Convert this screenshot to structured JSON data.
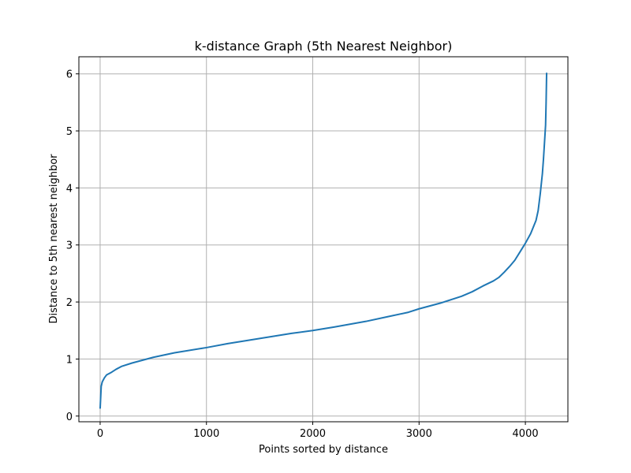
{
  "chart_data": {
    "type": "line",
    "title": "k-distance Graph (5th Nearest Neighbor)",
    "xlabel": "Points sorted by distance",
    "ylabel": "Distance to 5th nearest neighbor",
    "xlim": [
      -200,
      4400
    ],
    "ylim": [
      -0.1,
      6.3
    ],
    "xticks": [
      0,
      1000,
      2000,
      3000,
      4000
    ],
    "xtick_labels": [
      "0",
      "1000",
      "2000",
      "3000",
      "4000"
    ],
    "yticks": [
      0,
      1,
      2,
      3,
      4,
      5,
      6
    ],
    "ytick_labels": [
      "0",
      "1",
      "2",
      "3",
      "4",
      "5",
      "6"
    ],
    "grid": true,
    "series": [
      {
        "color": "#1f77b4",
        "x": [
          0,
          10,
          20,
          40,
          60,
          100,
          150,
          200,
          300,
          400,
          500,
          700,
          1000,
          1200,
          1500,
          1800,
          2000,
          2200,
          2500,
          2700,
          2900,
          3000,
          3200,
          3400,
          3500,
          3600,
          3700,
          3750,
          3800,
          3850,
          3900,
          3950,
          4000,
          4050,
          4100,
          4120,
          4140,
          4160,
          4170,
          4180,
          4190,
          4195,
          4200
        ],
        "y": [
          0.13,
          0.52,
          0.6,
          0.67,
          0.72,
          0.76,
          0.82,
          0.87,
          0.93,
          0.98,
          1.03,
          1.11,
          1.2,
          1.27,
          1.36,
          1.45,
          1.5,
          1.56,
          1.66,
          1.74,
          1.82,
          1.88,
          1.98,
          2.1,
          2.18,
          2.28,
          2.37,
          2.43,
          2.52,
          2.62,
          2.73,
          2.88,
          3.03,
          3.2,
          3.43,
          3.6,
          3.9,
          4.25,
          4.5,
          4.8,
          5.1,
          5.5,
          6.02
        ]
      }
    ]
  }
}
